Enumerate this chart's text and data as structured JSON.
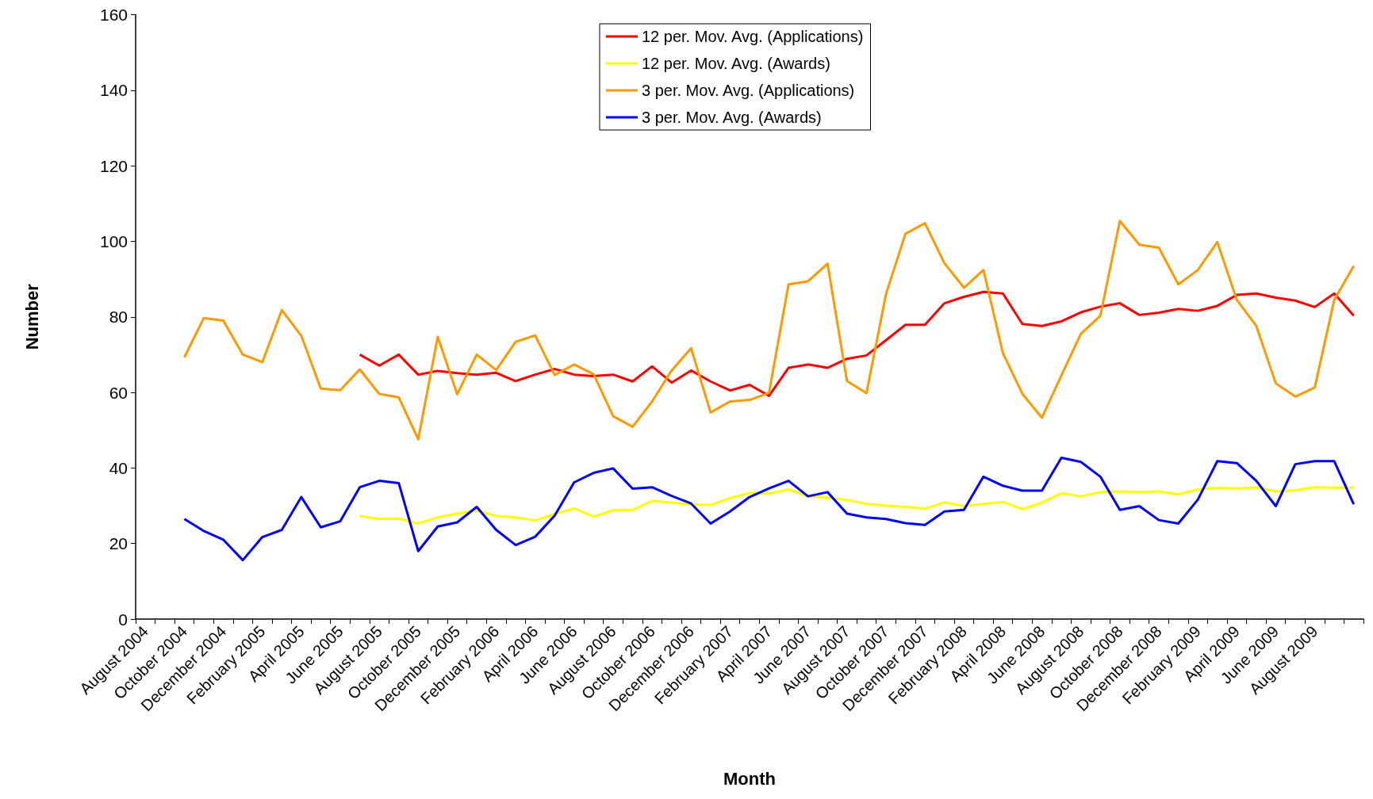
{
  "chart_data": {
    "type": "line",
    "xlabel": "Month",
    "ylabel": "Number",
    "categories": [
      "August 2004",
      null,
      "October 2004",
      null,
      "December 2004",
      null,
      "February 2005",
      null,
      "April 2005",
      null,
      "June 2005",
      null,
      "August 2005",
      null,
      "October 2005",
      null,
      "December 2005",
      null,
      "February 2006",
      null,
      "April 2006",
      null,
      "June 2006",
      null,
      "August 2006",
      null,
      "October 2006",
      null,
      "December 2006",
      null,
      "February 2007",
      null,
      "April 2007",
      null,
      "June 2007",
      null,
      "August 2007",
      null,
      "October 2007",
      null,
      "December 2007",
      null,
      "February 2008",
      null,
      "April 2008",
      null,
      "June 2008",
      null,
      "August 2008",
      null,
      "October 2008",
      null,
      "December 2008",
      null,
      "February 2009",
      null,
      "April 2009",
      null,
      "June 2009",
      null,
      "August 2009",
      null,
      null
    ],
    "series": [
      {
        "name": "12 per. Mov. Avg. (Applications)",
        "color": "#ff0000",
        "values": [
          null,
          null,
          null,
          null,
          null,
          null,
          null,
          null,
          null,
          null,
          null,
          70.0,
          67.1,
          70.0,
          64.7,
          65.7,
          65.1,
          64.7,
          65.2,
          63.0,
          64.7,
          66.2,
          64.7,
          64.3,
          64.7,
          62.9,
          66.9,
          62.6,
          65.8,
          62.9,
          60.5,
          62.0,
          59.1,
          66.5,
          67.4,
          66.5,
          68.9,
          69.8,
          73.8,
          77.9,
          77.9,
          83.6,
          85.3,
          86.6,
          86.2,
          78.1,
          77.6,
          78.8,
          81.2,
          82.7,
          83.6,
          80.5,
          81.1,
          82.1,
          81.6,
          82.9,
          85.8,
          86.2,
          85.1,
          84.3,
          82.6,
          86.2,
          80.3
        ]
      },
      {
        "name": "12 per. Mov. Avg. (Awards)",
        "color": "#ffff00",
        "values": [
          null,
          null,
          null,
          null,
          null,
          null,
          null,
          null,
          null,
          null,
          null,
          27.3,
          26.5,
          26.6,
          25.3,
          26.9,
          27.9,
          28.7,
          27.3,
          26.9,
          26.1,
          27.8,
          29.3,
          27.1,
          28.8,
          28.9,
          31.3,
          30.8,
          30.3,
          30.2,
          32.0,
          33.4,
          33.2,
          34.3,
          32.5,
          32.1,
          31.5,
          30.5,
          30.0,
          29.7,
          29.2,
          30.9,
          29.9,
          30.5,
          31.0,
          29.1,
          30.8,
          33.3,
          32.5,
          33.6,
          33.8,
          33.6,
          33.8,
          33.0,
          34.3,
          34.8,
          34.5,
          34.9,
          33.8,
          34.1,
          34.9,
          34.8,
          34.8
        ]
      },
      {
        "name": "3 per. Mov. Avg. (Applications)",
        "color": "#ff9900",
        "values": [
          null,
          null,
          69.3,
          79.7,
          79.0,
          70.0,
          68.0,
          81.8,
          75.0,
          61.0,
          60.6,
          66.1,
          59.6,
          58.7,
          47.6,
          74.7,
          59.5,
          70.0,
          65.9,
          73.4,
          75.1,
          64.6,
          67.4,
          64.8,
          53.7,
          50.9,
          57.6,
          65.8,
          71.7,
          54.7,
          57.6,
          58.0,
          59.9,
          88.6,
          89.4,
          94.1,
          63.0,
          59.8,
          86.0,
          102.0,
          104.8,
          94.2,
          87.7,
          92.4,
          70.4,
          59.6,
          53.3,
          64.5,
          75.5,
          80.3,
          105.4,
          99.1,
          98.3,
          88.6,
          92.4,
          99.8,
          84.5,
          77.6,
          62.4,
          58.9,
          61.3,
          84.5,
          93.5
        ]
      },
      {
        "name": "3 per. Mov. Avg. (Awards)",
        "color": "#0000ff",
        "values": [
          null,
          null,
          26.5,
          23.3,
          21.0,
          15.6,
          21.7,
          23.6,
          32.3,
          24.3,
          25.9,
          34.9,
          36.6,
          36.0,
          18.0,
          24.5,
          25.6,
          29.7,
          23.6,
          19.6,
          21.8,
          27.4,
          36.2,
          38.7,
          39.9,
          34.5,
          34.9,
          32.6,
          30.6,
          25.3,
          28.5,
          32.3,
          34.6,
          36.6,
          32.5,
          33.6,
          27.9,
          26.9,
          26.5,
          25.4,
          24.9,
          28.5,
          28.9,
          37.7,
          35.3,
          34.0,
          34.0,
          42.7,
          41.6,
          37.7,
          28.9,
          29.9,
          26.2,
          25.3,
          31.6,
          41.8,
          41.3,
          36.6,
          29.9,
          41.0,
          41.8,
          41.8,
          30.4
        ]
      }
    ],
    "ylim": [
      0,
      160
    ],
    "yticks": [
      0,
      20,
      40,
      60,
      80,
      100,
      120,
      140,
      160
    ],
    "grid": false,
    "legend": "top",
    "marker": "none",
    "line_style": "solid"
  }
}
